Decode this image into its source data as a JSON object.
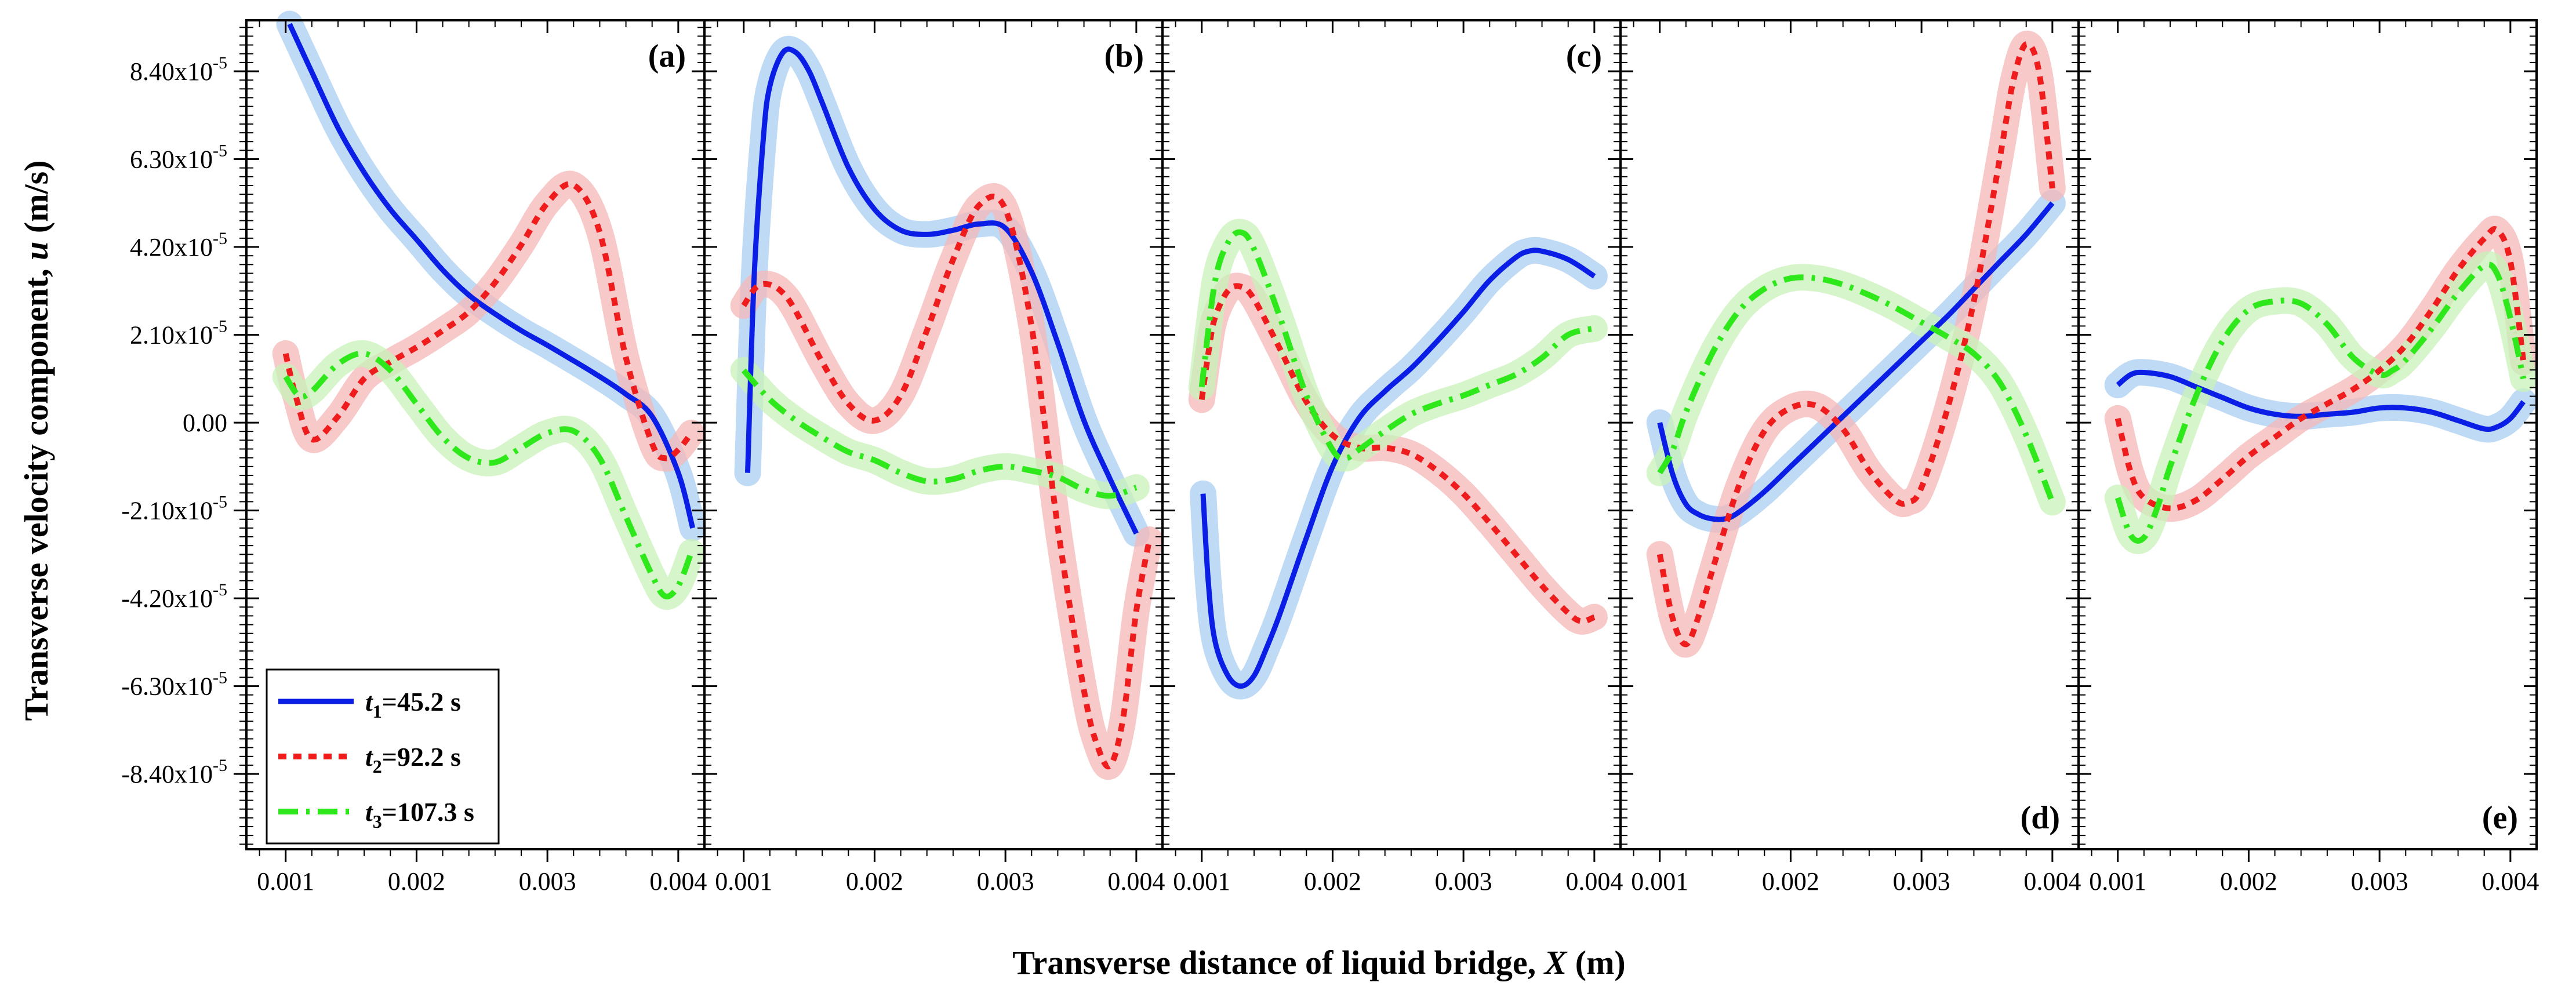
{
  "chart_data": {
    "type": "line",
    "ylabel_main": "Transverse velocity component, ",
    "ylabel_var": "u",
    "ylabel_unit": " (m/s)",
    "xlabel_main": "Transverse distance of liquid bridge, ",
    "xlabel_var": "X",
    "xlabel_unit": " (m)",
    "ylim": [
      -0.000102,
      9.62e-05
    ],
    "xlim": [
      0.0007,
      0.0042
    ],
    "y_ticks": [
      {
        "value": 8.4e-05,
        "label": "8.40x10",
        "exp": "-5"
      },
      {
        "value": 6.3e-05,
        "label": "6.30x10",
        "exp": "-5"
      },
      {
        "value": 4.2e-05,
        "label": "4.20x10",
        "exp": "-5"
      },
      {
        "value": 2.1e-05,
        "label": "2.10x10",
        "exp": "-5"
      },
      {
        "value": 0.0,
        "label": "0.00",
        "exp": ""
      },
      {
        "value": -2.1e-05,
        "label": "-2.10x10",
        "exp": "-5"
      },
      {
        "value": -4.2e-05,
        "label": "-4.20x10",
        "exp": "-5"
      },
      {
        "value": -6.3e-05,
        "label": "-6.30x10",
        "exp": "-5"
      },
      {
        "value": -8.4e-05,
        "label": "-8.40x10",
        "exp": "-5"
      }
    ],
    "x_ticks": [
      {
        "value": 0.001,
        "label": "0.001"
      },
      {
        "value": 0.002,
        "label": "0.002"
      },
      {
        "value": 0.003,
        "label": "0.003"
      },
      {
        "value": 0.004,
        "label": "0.004"
      }
    ],
    "series_styles": [
      {
        "name": "t1",
        "color": "#0a1ee6",
        "band": "#a8cdf2",
        "dash": "none"
      },
      {
        "name": "t2",
        "color": "#ee1c1c",
        "band": "#f6b7b7",
        "dash": "dot"
      },
      {
        "name": "t3",
        "color": "#2ee81c",
        "band": "#c8f2b8",
        "dash": "dashdot"
      }
    ],
    "legend": [
      {
        "sym": "t",
        "sub": "1",
        "text": "=45.2 s"
      },
      {
        "sym": "t",
        "sub": "2",
        "text": "=92.2 s"
      },
      {
        "sym": "t",
        "sub": "3",
        "text": "=107.3 s"
      }
    ],
    "legend_position": "bottom-left of panel (a)",
    "panels": [
      {
        "label": "(a)",
        "label_pos": "top-right",
        "series": [
          {
            "x": [
              0.00103,
              0.0012,
              0.0014,
              0.0016,
              0.0018,
              0.002,
              0.0022,
              0.0024,
              0.0026,
              0.0028,
              0.003,
              0.0032,
              0.0034,
              0.0036,
              0.0038,
              0.004,
              0.00411
            ],
            "y": [
              9.53e-05,
              8.38e-05,
              7.05e-05,
              5.98e-05,
              5.1e-05,
              4.38e-05,
              3.65e-05,
              3.05e-05,
              2.6e-05,
              2.2e-05,
              1.85e-05,
              1.48e-05,
              1.1e-05,
              6.8e-06,
              1.5e-06,
              -1.2e-05,
              -2.52e-05
            ]
          },
          {
            "x": [
              0.001,
              0.00108,
              0.0012,
              0.0014,
              0.0016,
              0.0018,
              0.002,
              0.0022,
              0.0024,
              0.0026,
              0.0028,
              0.003,
              0.0032,
              0.0034,
              0.0036,
              0.0038,
              0.0039,
              0.004,
              0.0041
            ],
            "y": [
              1.65e-05,
              6e-06,
              -4e-06,
              1.5e-06,
              1.05e-05,
              1.45e-05,
              1.8e-05,
              2.2e-05,
              2.65e-05,
              3.35e-05,
              4.25e-05,
              5.25e-05,
              5.68e-05,
              4.55e-05,
              1.55e-05,
              -5e-06,
              -8.5e-06,
              -6.5e-06,
              -2.5e-06
            ]
          },
          {
            "x": [
              0.001,
              0.0011,
              0.0012,
              0.0014,
              0.0016,
              0.0018,
              0.002,
              0.0022,
              0.0024,
              0.0026,
              0.0028,
              0.003,
              0.0032,
              0.0034,
              0.0036,
              0.0038,
              0.0039,
              0.004,
              0.0041
            ],
            "y": [
              1.1e-05,
              6.5e-06,
              7.5e-06,
              1.4e-05,
              1.65e-05,
              1.25e-05,
              4.5e-06,
              -3.5e-06,
              -8.5e-06,
              -9.5e-06,
              -6e-06,
              -2.5e-06,
              -2e-06,
              -8.5e-06,
              -2.25e-05,
              -3.65e-05,
              -4.15e-05,
              -3.9e-05,
              -3.1e-05
            ]
          }
        ]
      },
      {
        "label": "(b)",
        "label_pos": "top-right",
        "series": [
          {
            "x": [
              0.00103,
              0.00108,
              0.00115,
              0.0012,
              0.0013,
              0.0014,
              0.0015,
              0.0016,
              0.0018,
              0.002,
              0.0022,
              0.0024,
              0.0026,
              0.0028,
              0.003,
              0.0032,
              0.0034,
              0.0036,
              0.0038,
              0.004
            ],
            "y": [
              -1.2e-05,
              3.5e-05,
              6.8e-05,
              8.05e-05,
              8.85e-05,
              8.85e-05,
              8.4e-05,
              7.65e-05,
              6.1e-05,
              5.1e-05,
              4.6e-05,
              4.5e-05,
              4.6e-05,
              4.75e-05,
              4.65e-05,
              3.6e-05,
              1.9e-05,
              5e-07,
              -1.35e-05,
              -2.65e-05
            ]
          },
          {
            "x": [
              0.001,
              0.0011,
              0.0012,
              0.0013,
              0.0014,
              0.0016,
              0.0018,
              0.002,
              0.0022,
              0.0024,
              0.0026,
              0.0028,
              0.003,
              0.0032,
              0.0034,
              0.0036,
              0.0037,
              0.0038,
              0.0039,
              0.004,
              0.0041
            ],
            "y": [
              2.8e-05,
              3.25e-05,
              3.3e-05,
              3.1e-05,
              2.65e-05,
              1.45e-05,
              4.5e-06,
              5e-07,
              6.5e-06,
              2.2e-05,
              3.9e-05,
              5.2e-05,
              5.1e-05,
              2.3e-05,
              -2.5e-05,
              -6.4e-05,
              -7.7e-05,
              -8.2e-05,
              -7.05e-05,
              -4.5e-05,
              -2.8e-05
            ]
          },
          {
            "x": [
              0.001,
              0.0012,
              0.0014,
              0.0016,
              0.0018,
              0.002,
              0.0022,
              0.0024,
              0.0026,
              0.0028,
              0.003,
              0.0032,
              0.0034,
              0.0036,
              0.0038,
              0.004
            ],
            "y": [
              1.25e-05,
              5.5e-06,
              5e-07,
              -3.5e-06,
              -7e-06,
              -9e-06,
              -1.2e-05,
              -1.4e-05,
              -1.35e-05,
              -1.15e-05,
              -1.05e-05,
              -1.15e-05,
              -1.3e-05,
              -1.6e-05,
              -1.75e-05,
              -1.55e-05
            ]
          }
        ]
      },
      {
        "label": "(c)",
        "label_pos": "top-right",
        "series": [
          {
            "x": [
              0.00101,
              0.00105,
              0.0011,
              0.0012,
              0.0013,
              0.0014,
              0.0015,
              0.0016,
              0.0018,
              0.002,
              0.0022,
              0.0024,
              0.0026,
              0.0028,
              0.003,
              0.0032,
              0.0034,
              0.0035,
              0.0036,
              0.0038,
              0.004
            ],
            "y": [
              -1.7e-05,
              -3.8e-05,
              -5.2e-05,
              -6.05e-05,
              -6.3e-05,
              -6.05e-05,
              -5.35e-05,
              -4.55e-05,
              -2.75e-05,
              -1.05e-05,
              1e-06,
              7.5e-06,
              1.3e-05,
              1.95e-05,
              2.65e-05,
              3.4e-05,
              3.95e-05,
              4.1e-05,
              4.1e-05,
              3.9e-05,
              3.5e-05
            ]
          },
          {
            "x": [
              0.001,
              0.00105,
              0.0011,
              0.0012,
              0.0013,
              0.0014,
              0.0016,
              0.0018,
              0.002,
              0.0022,
              0.0024,
              0.0026,
              0.0028,
              0.003,
              0.0032,
              0.0034,
              0.0036,
              0.0038,
              0.0039,
              0.004
            ],
            "y": [
              5.5e-06,
              1.65e-05,
              2.5e-05,
              3.15e-05,
              3.25e-05,
              2.95e-05,
              1.75e-05,
              5e-06,
              -3e-06,
              -6e-06,
              -6e-06,
              -7.5e-06,
              -1.15e-05,
              -1.7e-05,
              -2.4e-05,
              -3.15e-05,
              -3.9e-05,
              -4.55e-05,
              -4.75e-05,
              -4.65e-05
            ]
          },
          {
            "x": [
              0.001,
              0.0011,
              0.0012,
              0.0013,
              0.0014,
              0.0016,
              0.0018,
              0.002,
              0.0021,
              0.0022,
              0.0024,
              0.0026,
              0.0028,
              0.003,
              0.0032,
              0.0034,
              0.0036,
              0.0038,
              0.004
            ],
            "y": [
              8.5e-06,
              3.35e-05,
              4.3e-05,
              4.55e-05,
              4.15e-05,
              2.5e-05,
              6.5e-06,
              -6.5e-06,
              -8.5e-06,
              -6.5e-06,
              -2e-06,
              2e-06,
              4.5e-06,
              6.5e-06,
              9e-06,
              1.15e-05,
              1.55e-05,
              2.1e-05,
              2.25e-05
            ]
          }
        ]
      },
      {
        "label": "(d)",
        "label_pos": "bottom-right",
        "series": [
          {
            "x": [
              0.001,
              0.0011,
              0.0012,
              0.0013,
              0.0014,
              0.0015,
              0.0016,
              0.0018,
              0.002,
              0.0022,
              0.0024,
              0.0026,
              0.0028,
              0.003,
              0.0032,
              0.0034,
              0.0036,
              0.0038,
              0.004
            ],
            "y": [
              0.0,
              -1.25e-05,
              -1.95e-05,
              -2.2e-05,
              -2.3e-05,
              -2.3e-05,
              -2.15e-05,
              -1.65e-05,
              -1.05e-05,
              -4.5e-06,
              1.5e-06,
              7.5e-06,
              1.35e-05,
              1.95e-05,
              2.55e-05,
              3.2e-05,
              3.85e-05,
              4.5e-05,
              5.25e-05
            ]
          },
          {
            "x": [
              0.001,
              0.0011,
              0.0012,
              0.0013,
              0.0014,
              0.0016,
              0.0018,
              0.002,
              0.0022,
              0.0024,
              0.0026,
              0.0028,
              0.0029,
              0.003,
              0.0032,
              0.0034,
              0.0036,
              0.0037,
              0.0038,
              0.0039,
              0.004
            ],
            "y": [
              -3.15e-05,
              -4.7e-05,
              -5.3e-05,
              -4.6e-05,
              -3.55e-05,
              -1.55e-05,
              -2e-06,
              3.5e-06,
              4e-06,
              -1.5e-06,
              -1.15e-05,
              -1.85e-05,
              -1.9e-05,
              -1.55e-05,
              3.5e-06,
              2.9e-05,
              6.35e-05,
              8.15e-05,
              9.05e-05,
              8.35e-05,
              5.6e-05
            ]
          },
          {
            "x": [
              0.001,
              0.0011,
              0.0012,
              0.0014,
              0.0016,
              0.0018,
              0.002,
              0.0022,
              0.0024,
              0.0026,
              0.0028,
              0.003,
              0.0032,
              0.0034,
              0.0036,
              0.0038,
              0.004
            ],
            "y": [
              -1.2e-05,
              -6.5e-06,
              2.5e-06,
              1.65e-05,
              2.65e-05,
              3.2e-05,
              3.45e-05,
              3.45e-05,
              3.3e-05,
              3.05e-05,
              2.75e-05,
              2.4e-05,
              2.05e-05,
              1.65e-05,
              9.5e-06,
              -3e-06,
              -1.9e-05
            ]
          }
        ]
      },
      {
        "label": "(e)",
        "label_pos": "bottom-right",
        "series": [
          {
            "x": [
              0.001,
              0.0011,
              0.0012,
              0.0014,
              0.0016,
              0.0018,
              0.002,
              0.0022,
              0.0024,
              0.0026,
              0.0028,
              0.003,
              0.0032,
              0.0034,
              0.0036,
              0.0038,
              0.0039,
              0.004,
              0.0041
            ],
            "y": [
              9e-06,
              1.15e-05,
              1.2e-05,
              1.1e-05,
              8.5e-06,
              6e-06,
              3.5e-06,
              2e-06,
              1.5e-06,
              2e-06,
              2.5e-06,
              3.5e-06,
              3.5e-06,
              2.5e-06,
              5e-07,
              -1.5e-06,
              -1e-06,
              1e-06,
              5e-06
            ]
          },
          {
            "x": [
              0.001,
              0.0011,
              0.0012,
              0.0014,
              0.0016,
              0.0018,
              0.002,
              0.0022,
              0.0024,
              0.0026,
              0.0028,
              0.003,
              0.0032,
              0.0034,
              0.0036,
              0.0038,
              0.0039,
              0.004,
              0.0041
            ],
            "y": [
              1e-06,
              -1.2e-05,
              -1.8e-05,
              -2.05e-05,
              -1.85e-05,
              -1.35e-05,
              -8e-06,
              -3.5e-06,
              1e-06,
              4.5e-06,
              8e-06,
              1.25e-05,
              1.85e-05,
              2.7e-05,
              3.65e-05,
              4.4e-05,
              4.6e-05,
              3.85e-05,
              1.45e-05
            ]
          },
          {
            "x": [
              0.001,
              0.0011,
              0.0012,
              0.0013,
              0.0014,
              0.0016,
              0.0018,
              0.002,
              0.0022,
              0.0024,
              0.0026,
              0.0028,
              0.003,
              0.0031,
              0.0032,
              0.0034,
              0.0036,
              0.0038,
              0.0039,
              0.004,
              0.0041
            ],
            "y": [
              -1.8e-05,
              -2.7e-05,
              -2.75e-05,
              -2.05e-05,
              -1.05e-05,
              6.5e-06,
              1.95e-05,
              2.7e-05,
              2.9e-05,
              2.85e-05,
              2.35e-05,
              1.55e-05,
              1.15e-05,
              1.25e-05,
              1.5e-05,
              2.25e-05,
              3.1e-05,
              3.75e-05,
              3.55e-05,
              2.5e-05,
              1.05e-05
            ]
          }
        ]
      }
    ]
  }
}
